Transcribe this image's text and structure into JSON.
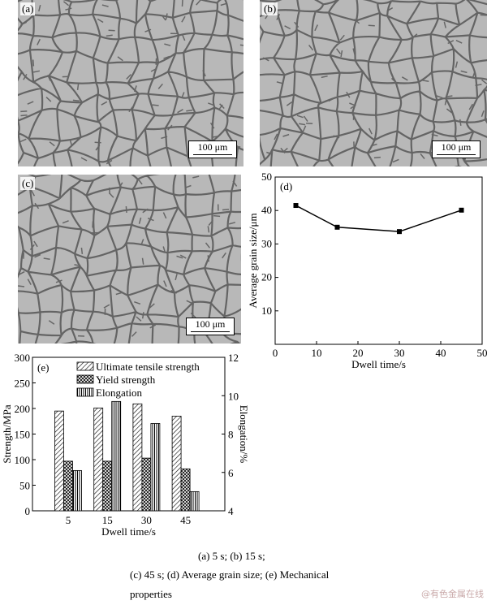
{
  "panels": {
    "a": {
      "label": "(a)",
      "scale": "100 μm"
    },
    "b": {
      "label": "(b)",
      "scale": "100 μm"
    },
    "c": {
      "label": "(c)",
      "scale": "100 μm"
    }
  },
  "chart_data": [
    {
      "type": "line",
      "panel_label": "(d)",
      "title": "",
      "xlabel": "Dwell time/s",
      "ylabel": "Average grain size/μm",
      "xlim": [
        0,
        50
      ],
      "ylim": [
        0,
        50
      ],
      "xticks": [
        "0",
        "10",
        "20",
        "30",
        "40",
        "50"
      ],
      "yticks": [
        "10",
        "20",
        "30",
        "40",
        "50"
      ],
      "x": [
        5,
        15,
        30,
        45
      ],
      "y": [
        41.5,
        35.0,
        33.7,
        40.1
      ],
      "grid": false,
      "marker": "square"
    },
    {
      "type": "bar",
      "panel_label": "(e)",
      "xlabel": "Dwell time/s",
      "ylabel": "Strength/MPa",
      "y2label": "Elongation/%",
      "categories": [
        "5",
        "15",
        "30",
        "45"
      ],
      "ylim": [
        0,
        300
      ],
      "y2lim": [
        4,
        12
      ],
      "yticks": [
        "0",
        "50",
        "100",
        "150",
        "200",
        "250",
        "300"
      ],
      "y2ticks": [
        "4",
        "6",
        "8",
        "10",
        "12"
      ],
      "series": [
        {
          "name": "Ultimate tensile strength",
          "axis": "left",
          "pattern": "diagonal",
          "values": [
            195,
            201,
            209,
            185
          ]
        },
        {
          "name": "Yield strength",
          "axis": "left",
          "pattern": "crosshatch",
          "values": [
            97,
            97,
            103,
            82
          ]
        },
        {
          "name": "Elongation",
          "axis": "right",
          "pattern": "vertical",
          "values": [
            6.1,
            9.7,
            8.55,
            5.0
          ]
        }
      ],
      "legend": "top-right",
      "grid": false
    }
  ],
  "caption": {
    "line1": "(a) 5 s; (b) 15 s;",
    "line2": "(c) 45 s; (d) Average grain size; (e) Mechanical",
    "line3": "properties"
  },
  "watermark": "@有色金属在线"
}
